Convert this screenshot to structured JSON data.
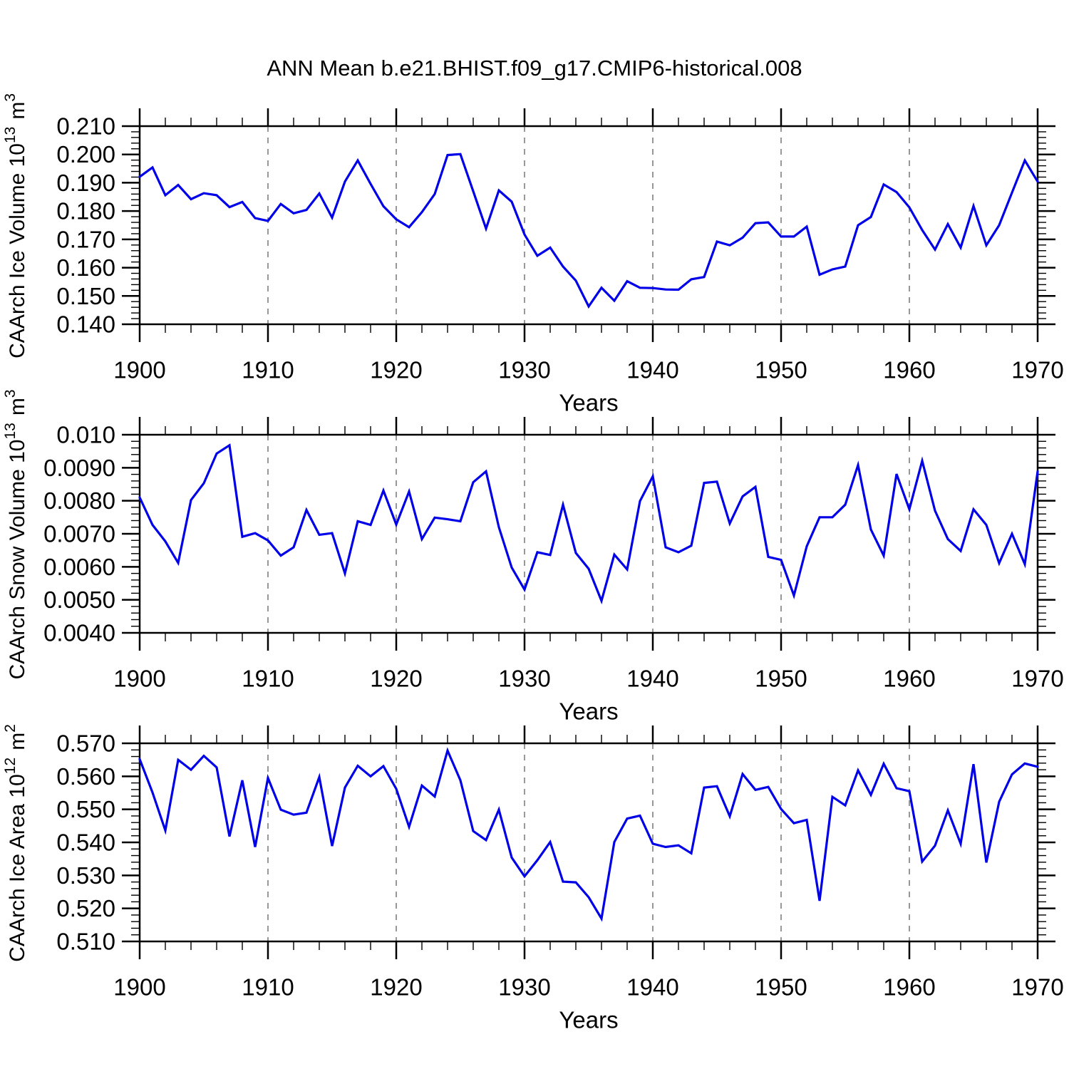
{
  "title": "ANN Mean b.e21.BHIST.f09_g17.CMIP6-historical.008",
  "chart_data": {
    "type": "line",
    "title": "ANN Mean b.e21.BHIST.f09_g17.CMIP6-historical.008",
    "xlabel": "Years",
    "x_min": 1900,
    "x_max": 1970,
    "x_major_step": 10,
    "x_minor_step": 2,
    "xtick_labels": [
      "1900",
      "1910",
      "1920",
      "1930",
      "1940",
      "1950",
      "1960",
      "1970"
    ],
    "grid": "vertical dashed lines at decades 1910-1960",
    "line_color": "#0000E8",
    "grid_color": "#777777",
    "years": [
      1900,
      1901,
      1902,
      1903,
      1904,
      1905,
      1906,
      1907,
      1908,
      1909,
      1910,
      1911,
      1912,
      1913,
      1914,
      1915,
      1916,
      1917,
      1918,
      1919,
      1920,
      1921,
      1922,
      1923,
      1924,
      1925,
      1926,
      1927,
      1928,
      1929,
      1930,
      1931,
      1932,
      1933,
      1934,
      1935,
      1936,
      1937,
      1938,
      1939,
      1940,
      1941,
      1942,
      1943,
      1944,
      1945,
      1946,
      1947,
      1948,
      1949,
      1950,
      1951,
      1952,
      1953,
      1954,
      1955,
      1956,
      1957,
      1958,
      1959,
      1960,
      1961,
      1962,
      1963,
      1964,
      1965,
      1966,
      1967,
      1968,
      1969,
      1970
    ],
    "panels": [
      {
        "id": "ice-volume",
        "ylabel": "CAArch Ice Volume 10^13 m^3",
        "y_min": 0.14,
        "y_max": 0.21,
        "y_major_step": 0.01,
        "y_minor_step": 0.002,
        "ytick_labels": [
          "0.140",
          "0.150",
          "0.160",
          "0.170",
          "0.180",
          "0.190",
          "0.200",
          "0.210"
        ],
        "values": [
          0.1921,
          0.1954,
          0.1856,
          0.1892,
          0.1842,
          0.1863,
          0.1856,
          0.1814,
          0.1832,
          0.1775,
          0.1765,
          0.1825,
          0.1792,
          0.1804,
          0.1862,
          0.1777,
          0.1904,
          0.1979,
          0.1896,
          0.1817,
          0.1771,
          0.1743,
          0.1796,
          0.186,
          0.1998,
          0.2001,
          0.187,
          0.1738,
          0.1873,
          0.1833,
          0.1717,
          0.1642,
          0.1671,
          0.1604,
          0.1554,
          0.1463,
          0.1529,
          0.1483,
          0.1552,
          0.1529,
          0.1528,
          0.1523,
          0.1522,
          0.1559,
          0.1567,
          0.1692,
          0.1679,
          0.1706,
          0.1757,
          0.176,
          0.171,
          0.171,
          0.1745,
          0.1575,
          0.1594,
          0.1604,
          0.175,
          0.1779,
          0.1894,
          0.1867,
          0.1813,
          0.1733,
          0.1664,
          0.1754,
          0.1671,
          0.1818,
          0.1679,
          0.175,
          0.1865,
          0.1979,
          0.1904
        ]
      },
      {
        "id": "snow-volume",
        "ylabel": "CAArch Snow Volume 10^13 m^3",
        "y_min": 0.004,
        "y_max": 0.01,
        "y_major_step": 0.001,
        "y_minor_step": 0.0002,
        "ytick_labels": [
          "0.0040",
          "0.0050",
          "0.0060",
          "0.0070",
          "0.0080",
          "0.0090",
          "0.010"
        ],
        "values": [
          0.0081,
          0.00727,
          0.00677,
          0.00612,
          0.00802,
          0.00853,
          0.00943,
          0.00968,
          0.00691,
          0.00702,
          0.0068,
          0.00634,
          0.00659,
          0.00772,
          0.00697,
          0.00702,
          0.0058,
          0.00738,
          0.00727,
          0.00831,
          0.00728,
          0.00828,
          0.00684,
          0.00749,
          0.00744,
          0.00738,
          0.00856,
          0.00889,
          0.0072,
          0.00598,
          0.00531,
          0.00644,
          0.00636,
          0.00788,
          0.00642,
          0.00594,
          0.00497,
          0.00637,
          0.00592,
          0.00799,
          0.00874,
          0.00659,
          0.00644,
          0.00664,
          0.00854,
          0.00858,
          0.00731,
          0.00813,
          0.00842,
          0.0063,
          0.00621,
          0.00513,
          0.00662,
          0.0075,
          0.0075,
          0.00788,
          0.00908,
          0.00713,
          0.00634,
          0.00881,
          0.00774,
          0.00921,
          0.0077,
          0.00684,
          0.00648,
          0.00774,
          0.00727,
          0.00611,
          0.007,
          0.00608,
          0.00889
        ]
      },
      {
        "id": "ice-area",
        "ylabel": "CAArch Ice Area 10^12 m^2",
        "y_min": 0.51,
        "y_max": 0.57,
        "y_major_step": 0.01,
        "y_minor_step": 0.002,
        "ytick_labels": [
          "0.510",
          "0.520",
          "0.530",
          "0.540",
          "0.550",
          "0.560",
          "0.570"
        ],
        "values": [
          0.5652,
          0.5551,
          0.5436,
          0.565,
          0.562,
          0.5662,
          0.5627,
          0.5418,
          0.5588,
          0.5386,
          0.5595,
          0.5499,
          0.5484,
          0.549,
          0.5598,
          0.5389,
          0.5566,
          0.5632,
          0.56,
          0.5631,
          0.5562,
          0.5447,
          0.5572,
          0.5539,
          0.5678,
          0.5588,
          0.5434,
          0.5407,
          0.5499,
          0.5354,
          0.5297,
          0.5346,
          0.5401,
          0.5281,
          0.5279,
          0.5234,
          0.5169,
          0.5401,
          0.5472,
          0.5481,
          0.5396,
          0.5386,
          0.5391,
          0.5367,
          0.5566,
          0.557,
          0.5479,
          0.5607,
          0.5559,
          0.5568,
          0.5501,
          0.5458,
          0.5468,
          0.5223,
          0.5538,
          0.5512,
          0.5618,
          0.5544,
          0.5638,
          0.5564,
          0.5555,
          0.5342,
          0.539,
          0.5497,
          0.5396,
          0.5637,
          0.5339,
          0.5523,
          0.5606,
          0.5639,
          0.5629
        ]
      }
    ]
  }
}
